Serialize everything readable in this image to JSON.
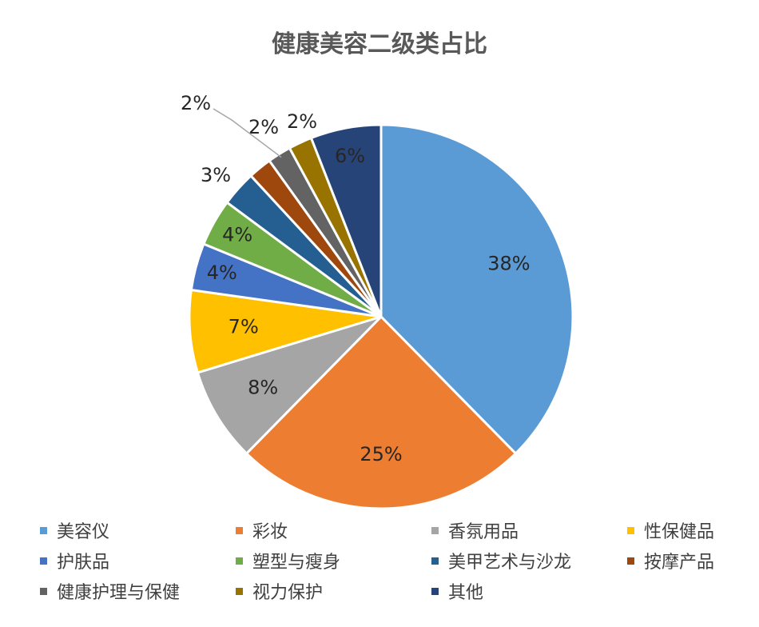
{
  "chart_data": {
    "type": "pie",
    "title": "健康美容二级类占比",
    "series": [
      {
        "name": "美容仪",
        "value": 38,
        "label": "38%",
        "color": "#5B9BD5"
      },
      {
        "name": "彩妆",
        "value": 25,
        "label": "25%",
        "color": "#ED7D31"
      },
      {
        "name": "香氛用品",
        "value": 8,
        "label": "8%",
        "color": "#A5A5A5"
      },
      {
        "name": "性保健品",
        "value": 7,
        "label": "7%",
        "color": "#FFC000"
      },
      {
        "name": "护肤品",
        "value": 4,
        "label": "4%",
        "color": "#4472C4"
      },
      {
        "name": "塑型与瘦身",
        "value": 4,
        "label": "4%",
        "color": "#70AD47"
      },
      {
        "name": "美甲艺术与沙龙",
        "value": 3,
        "label": "3%",
        "color": "#255E91"
      },
      {
        "name": "按摩产品",
        "value": 2,
        "label": "2%",
        "color": "#9E480E"
      },
      {
        "name": "健康护理与保健",
        "value": 2,
        "label": "2%",
        "color": "#636363"
      },
      {
        "name": "视力保护",
        "value": 2,
        "label": "2%",
        "color": "#997300"
      },
      {
        "name": "其他",
        "value": 6,
        "label": "6%",
        "color": "#264478"
      }
    ],
    "legend_position": "bottom"
  }
}
